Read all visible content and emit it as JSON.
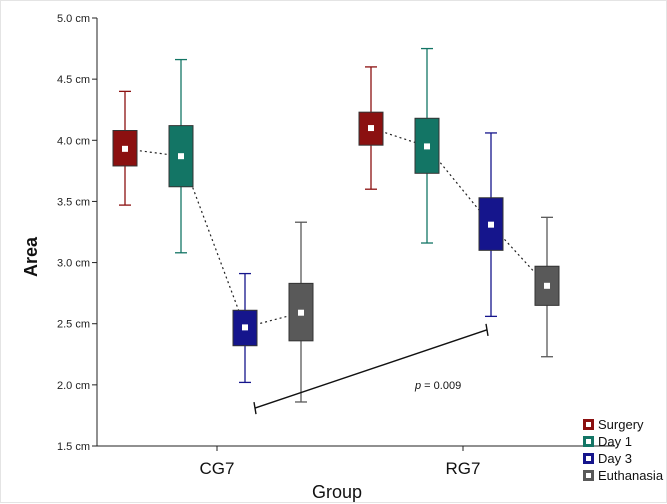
{
  "chart_data": {
    "type": "boxplot",
    "xlabel": "Group",
    "ylabel": "Area",
    "ylim": [
      1.5,
      5.0
    ],
    "yticks": [
      "1.5 cm",
      "2.0 cm",
      "2.5 cm",
      "3.0 cm",
      "3.5 cm",
      "4.0 cm",
      "4.5 cm",
      "5.0 cm"
    ],
    "ytick_values": [
      1.5,
      2.0,
      2.5,
      3.0,
      3.5,
      4.0,
      4.5,
      5.0
    ],
    "categories": [
      "CG7",
      "RG7"
    ],
    "grid": false,
    "legend_position": "bottom-right",
    "series": [
      {
        "name": "Surgery",
        "color": "#8b1010",
        "boxes": [
          {
            "category": "CG7",
            "min": 3.47,
            "q1": 3.79,
            "median": 3.93,
            "q3": 4.08,
            "max": 4.4
          },
          {
            "category": "RG7",
            "min": 3.6,
            "q1": 3.96,
            "median": 4.1,
            "q3": 4.23,
            "max": 4.6
          }
        ]
      },
      {
        "name": "Day 1",
        "color": "#137565",
        "boxes": [
          {
            "category": "CG7",
            "min": 3.08,
            "q1": 3.62,
            "median": 3.87,
            "q3": 4.12,
            "max": 4.66
          },
          {
            "category": "RG7",
            "min": 3.16,
            "q1": 3.73,
            "median": 3.95,
            "q3": 4.18,
            "max": 4.75
          }
        ]
      },
      {
        "name": "Day 3",
        "color": "#15158c",
        "boxes": [
          {
            "category": "CG7",
            "min": 2.02,
            "q1": 2.32,
            "median": 2.47,
            "q3": 2.61,
            "max": 2.91
          },
          {
            "category": "RG7",
            "min": 2.56,
            "q1": 3.1,
            "median": 3.31,
            "q3": 3.53,
            "max": 4.06
          }
        ]
      },
      {
        "name": "Euthanasia",
        "color": "#595959",
        "boxes": [
          {
            "category": "CG7",
            "min": 1.86,
            "q1": 2.36,
            "median": 2.59,
            "q3": 2.83,
            "max": 3.33
          },
          {
            "category": "RG7",
            "min": 2.23,
            "q1": 2.65,
            "median": 2.81,
            "q3": 2.97,
            "max": 3.37
          }
        ]
      }
    ],
    "annotations": [
      {
        "text_prefix": "p",
        "text_rest": " = 0.009",
        "from": {
          "category": "CG7",
          "series": "Day 3",
          "y": 1.81
        },
        "to": {
          "category": "RG7",
          "series": "Day 3",
          "y": 2.45
        }
      }
    ]
  }
}
